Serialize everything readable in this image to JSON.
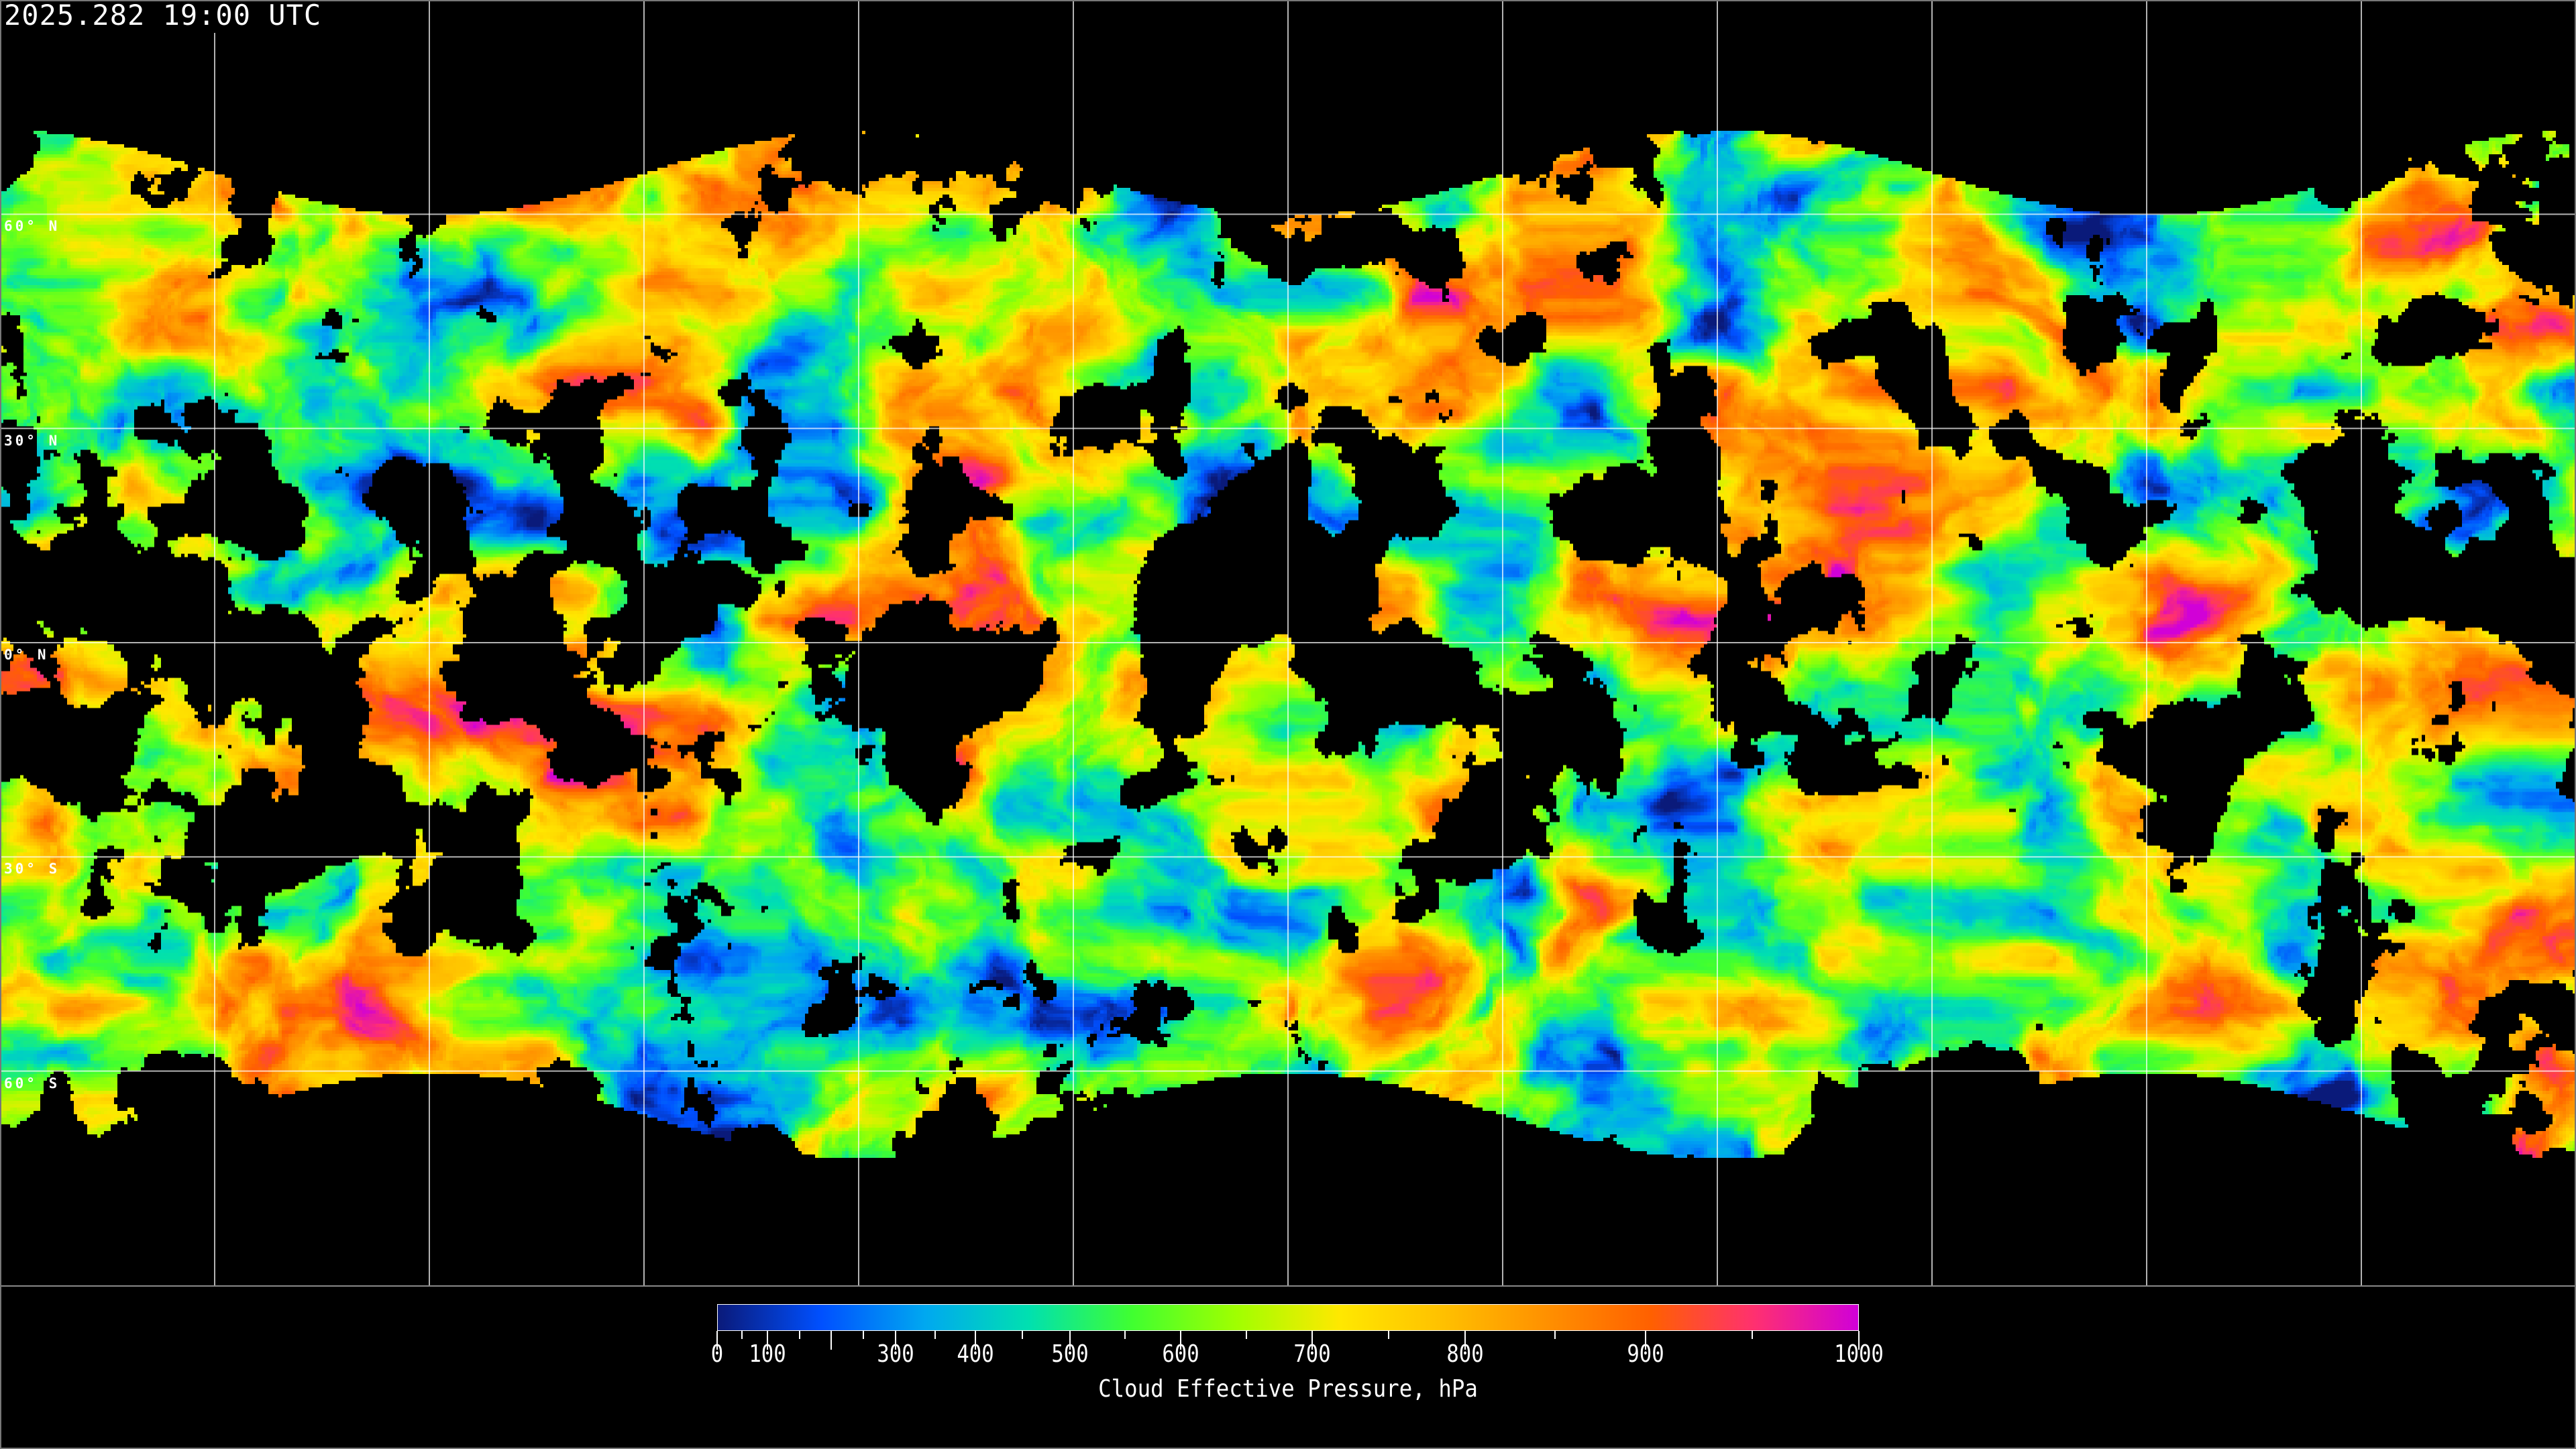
{
  "header": {
    "timestamp": "2025.282 19:00 UTC"
  },
  "map": {
    "projection": "equirectangular",
    "graticule_step_deg": 30,
    "latitude_labels": [
      "60° N",
      "30° N",
      "0° N",
      "30° S",
      "60° S"
    ],
    "latitude_values": [
      60,
      30,
      0,
      -30,
      -60
    ],
    "grid_color": "#ffffff",
    "coastline_color": "#ffffff",
    "no_data_color": "#000000"
  },
  "colorbar": {
    "title": "Cloud Effective Pressure, hPa",
    "range": [
      0,
      1000
    ],
    "tick_labels": [
      "0",
      "100",
      "300",
      "400",
      "500",
      "600",
      "700",
      "800",
      "900",
      "1000"
    ],
    "tick_values": [
      0,
      100,
      300,
      400,
      500,
      600,
      700,
      800,
      900,
      1000
    ],
    "colormap_stops": [
      "#0a1a7a",
      "#0050ff",
      "#00a8f0",
      "#00e0b0",
      "#40ff30",
      "#a0ff00",
      "#ffe800",
      "#ffc000",
      "#ff9000",
      "#ff6000",
      "#ff3070",
      "#d000d8"
    ]
  }
}
